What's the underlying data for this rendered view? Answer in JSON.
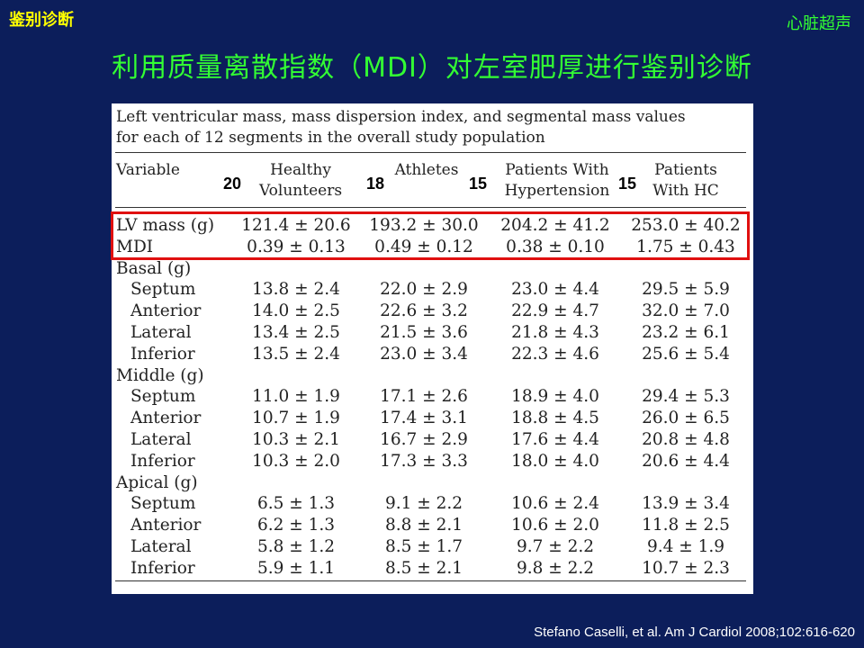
{
  "corner_left": "鉴别诊断",
  "corner_right": "心脏超声",
  "title": "利用质量离散指数（MDI）对左室肥厚进行鉴别诊断",
  "table": {
    "caption_line1": "Left ventricular mass, mass dispersion index, and segmental mass values",
    "caption_line2": "for each of 12 segments in the overall study population",
    "headers": {
      "variable": "Variable",
      "col1": [
        "Healthy",
        "Volunteers"
      ],
      "col2": [
        "Athletes"
      ],
      "col3": [
        "Patients With",
        "Hypertension"
      ],
      "col4": [
        "Patients",
        "With HC"
      ]
    },
    "counts": [
      "20",
      "18",
      "15",
      "15"
    ],
    "rows": [
      {
        "label": "LV mass (g)",
        "indent": false,
        "values": [
          "121.4 ± 20.6",
          "193.2 ± 30.0",
          "204.2 ± 41.2",
          "253.0 ± 40.2"
        ]
      },
      {
        "label": "MDI",
        "indent": false,
        "values": [
          "0.39 ± 0.13",
          "0.49 ± 0.12",
          "0.38 ± 0.10",
          "1.75 ± 0.43"
        ]
      },
      {
        "label": "Basal (g)",
        "indent": false,
        "values": []
      },
      {
        "label": "Septum",
        "indent": true,
        "values": [
          "13.8 ± 2.4",
          "22.0 ± 2.9",
          "23.0 ± 4.4",
          "29.5 ± 5.9"
        ]
      },
      {
        "label": "Anterior",
        "indent": true,
        "values": [
          "14.0 ± 2.5",
          "22.6 ± 3.2",
          "22.9 ± 4.7",
          "32.0 ± 7.0"
        ]
      },
      {
        "label": "Lateral",
        "indent": true,
        "values": [
          "13.4 ± 2.5",
          "21.5 ± 3.6",
          "21.8 ± 4.3",
          "23.2 ± 6.1"
        ]
      },
      {
        "label": "Inferior",
        "indent": true,
        "values": [
          "13.5 ± 2.4",
          "23.0 ± 3.4",
          "22.3 ± 4.6",
          "25.6 ± 5.4"
        ]
      },
      {
        "label": "Middle (g)",
        "indent": false,
        "values": []
      },
      {
        "label": "Septum",
        "indent": true,
        "values": [
          "11.0 ± 1.9",
          "17.1 ± 2.6",
          "18.9 ± 4.0",
          "29.4 ± 5.3"
        ]
      },
      {
        "label": "Anterior",
        "indent": true,
        "values": [
          "10.7 ± 1.9",
          "17.4 ± 3.1",
          "18.8 ± 4.5",
          "26.0 ± 6.5"
        ]
      },
      {
        "label": "Lateral",
        "indent": true,
        "values": [
          "10.3 ± 2.1",
          "16.7 ± 2.9",
          "17.6 ± 4.4",
          "20.8 ± 4.8"
        ]
      },
      {
        "label": "Inferior",
        "indent": true,
        "values": [
          "10.3 ± 2.0",
          "17.3 ± 3.3",
          "18.0 ± 4.0",
          "20.6 ± 4.4"
        ]
      },
      {
        "label": "Apical (g)",
        "indent": false,
        "values": []
      },
      {
        "label": "Septum",
        "indent": true,
        "values": [
          "6.5 ± 1.3",
          "9.1 ± 2.2",
          "10.6 ± 2.4",
          "13.9 ± 3.4"
        ]
      },
      {
        "label": "Anterior",
        "indent": true,
        "values": [
          "6.2 ± 1.3",
          "8.8 ± 2.1",
          "10.6 ± 2.0",
          "11.8 ± 2.5"
        ]
      },
      {
        "label": "Lateral",
        "indent": true,
        "values": [
          "5.8 ± 1.2",
          "8.5 ± 1.7",
          "9.7 ± 2.2",
          "9.4 ± 1.9"
        ]
      },
      {
        "label": "Inferior",
        "indent": true,
        "values": [
          "5.9 ± 1.1",
          "8.5 ± 2.1",
          "9.8 ± 2.2",
          "10.7 ± 2.3"
        ]
      }
    ]
  },
  "citation": "Stefano Caselli, et al. Am J Cardiol 2008;102:616-620",
  "colors": {
    "background": "#0c1e5b",
    "title": "#33ff33",
    "corner_left": "#ffff00",
    "highlight": "#e01010"
  }
}
